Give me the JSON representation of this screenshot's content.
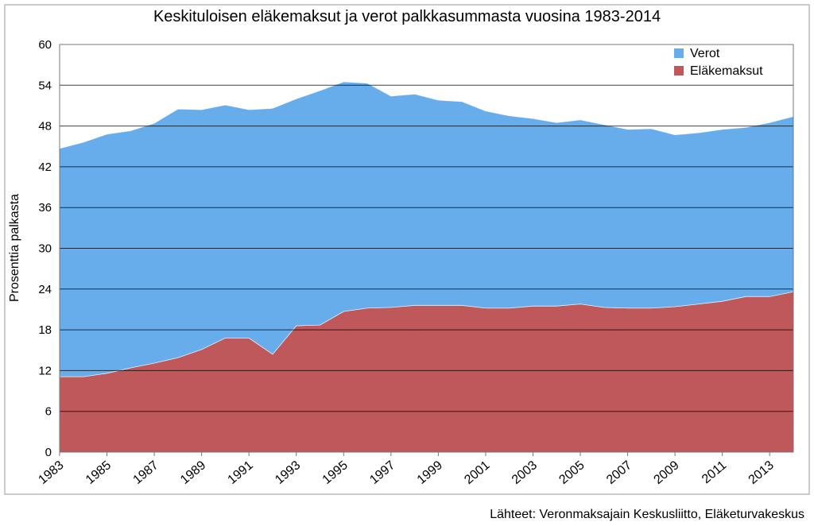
{
  "chart_data": {
    "type": "stacked-area",
    "title": "Keskituloisen eläkemaksut ja verot palkkasummasta vuosina 1983-2014",
    "y_label": "Prosenttia palkasta",
    "source": "Lähteet: Veronmaksajain Keskusliitto, Eläketurvakeskus",
    "x": [
      1983,
      1984,
      1985,
      1986,
      1987,
      1988,
      1989,
      1990,
      1991,
      1992,
      1993,
      1994,
      1995,
      1996,
      1997,
      1998,
      1999,
      2000,
      2001,
      2002,
      2003,
      2004,
      2005,
      2006,
      2007,
      2008,
      2009,
      2010,
      2011,
      2012,
      2013,
      2014
    ],
    "series": [
      {
        "name": "Eläkemaksut",
        "color": "#be585b",
        "values": [
          11.1,
          11.1,
          11.6,
          12.4,
          13.1,
          13.9,
          15.1,
          16.8,
          16.8,
          14.4,
          18.6,
          18.7,
          20.7,
          21.2,
          21.3,
          21.6,
          21.6,
          21.6,
          21.2,
          21.2,
          21.5,
          21.5,
          21.8,
          21.3,
          21.2,
          21.2,
          21.4,
          21.8,
          22.2,
          22.9,
          22.9,
          23.6
        ]
      },
      {
        "name": "Verot",
        "color": "#67adec",
        "values": [
          33.6,
          34.5,
          35.2,
          34.9,
          35.3,
          36.6,
          35.3,
          34.3,
          33.6,
          36.2,
          33.4,
          34.5,
          33.8,
          33.1,
          31.1,
          31.1,
          30.2,
          30.0,
          29.0,
          28.3,
          27.6,
          27.0,
          27.1,
          26.9,
          26.3,
          26.4,
          25.3,
          25.2,
          25.3,
          24.9,
          25.6,
          25.8
        ]
      }
    ],
    "xlim": [
      1983,
      2014
    ],
    "xticks": [
      1983,
      1985,
      1987,
      1989,
      1991,
      1993,
      1995,
      1997,
      1999,
      2001,
      2003,
      2005,
      2007,
      2009,
      2011,
      2013
    ],
    "ylim": [
      0,
      60
    ],
    "yticks": [
      0,
      6,
      12,
      18,
      24,
      30,
      36,
      42,
      48,
      54,
      60
    ],
    "grid": true,
    "legend": "top-right"
  }
}
